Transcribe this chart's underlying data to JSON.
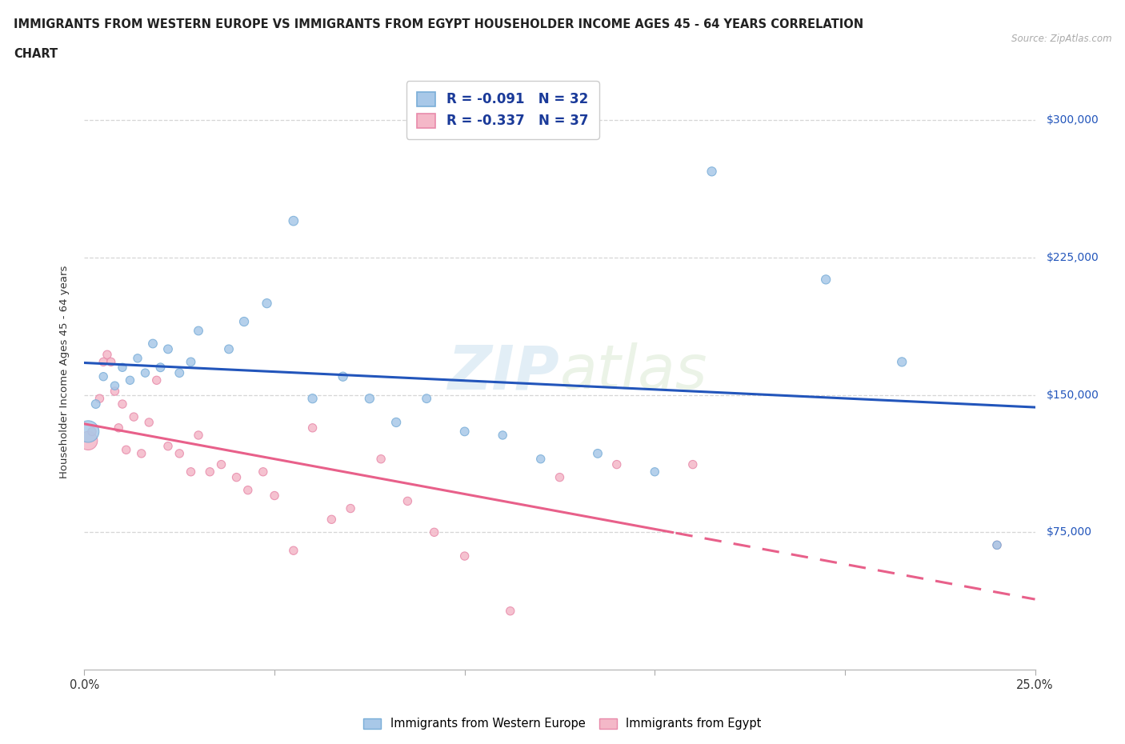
{
  "title_line1": "IMMIGRANTS FROM WESTERN EUROPE VS IMMIGRANTS FROM EGYPT HOUSEHOLDER INCOME AGES 45 - 64 YEARS CORRELATION",
  "title_line2": "CHART",
  "source": "Source: ZipAtlas.com",
  "ylabel": "Householder Income Ages 45 - 64 years",
  "xlim": [
    0.0,
    0.25
  ],
  "ylim": [
    0,
    325000
  ],
  "ytick_labels": [
    "$75,000",
    "$150,000",
    "$225,000",
    "$300,000"
  ],
  "ytick_values": [
    75000,
    150000,
    225000,
    300000
  ],
  "watermark": "ZIPatlas",
  "legend1_label": "R = -0.091   N = 32",
  "legend2_label": "R = -0.337   N = 37",
  "series1_color": "#a8c8e8",
  "series2_color": "#f4b8c8",
  "series1_edge": "#7aaed8",
  "series2_edge": "#e88aaa",
  "trendline1_color": "#2255bb",
  "trendline2_color": "#e8608a",
  "series1_name": "Immigrants from Western Europe",
  "series2_name": "Immigrants from Egypt",
  "western_europe_x": [
    0.001,
    0.003,
    0.005,
    0.008,
    0.01,
    0.012,
    0.014,
    0.016,
    0.018,
    0.02,
    0.022,
    0.025,
    0.028,
    0.03,
    0.038,
    0.042,
    0.048,
    0.055,
    0.06,
    0.068,
    0.075,
    0.082,
    0.09,
    0.1,
    0.11,
    0.12,
    0.135,
    0.15,
    0.165,
    0.195,
    0.215,
    0.24
  ],
  "western_europe_y": [
    130000,
    145000,
    160000,
    155000,
    165000,
    158000,
    170000,
    162000,
    178000,
    165000,
    175000,
    162000,
    168000,
    185000,
    175000,
    190000,
    200000,
    245000,
    148000,
    160000,
    148000,
    135000,
    148000,
    130000,
    128000,
    115000,
    118000,
    108000,
    272000,
    213000,
    168000,
    68000
  ],
  "western_europe_sizes": [
    380,
    60,
    55,
    55,
    55,
    55,
    55,
    55,
    60,
    60,
    60,
    60,
    60,
    60,
    60,
    65,
    65,
    70,
    65,
    65,
    65,
    65,
    60,
    60,
    55,
    55,
    60,
    55,
    65,
    65,
    65,
    55
  ],
  "egypt_x": [
    0.001,
    0.002,
    0.004,
    0.005,
    0.006,
    0.007,
    0.008,
    0.009,
    0.01,
    0.011,
    0.013,
    0.015,
    0.017,
    0.019,
    0.022,
    0.025,
    0.028,
    0.03,
    0.033,
    0.036,
    0.04,
    0.043,
    0.047,
    0.05,
    0.055,
    0.06,
    0.065,
    0.07,
    0.078,
    0.085,
    0.092,
    0.1,
    0.112,
    0.125,
    0.14,
    0.16,
    0.24
  ],
  "egypt_y": [
    125000,
    130000,
    148000,
    168000,
    172000,
    168000,
    152000,
    132000,
    145000,
    120000,
    138000,
    118000,
    135000,
    158000,
    122000,
    118000,
    108000,
    128000,
    108000,
    112000,
    105000,
    98000,
    108000,
    95000,
    65000,
    132000,
    82000,
    88000,
    115000,
    92000,
    75000,
    62000,
    32000,
    105000,
    112000,
    112000,
    68000
  ],
  "egypt_sizes": [
    280,
    55,
    55,
    55,
    55,
    55,
    55,
    55,
    55,
    55,
    55,
    55,
    55,
    55,
    55,
    55,
    55,
    55,
    55,
    55,
    55,
    55,
    55,
    55,
    55,
    55,
    55,
    55,
    55,
    55,
    55,
    55,
    55,
    55,
    55,
    55,
    55
  ],
  "background_color": "#ffffff",
  "grid_color": "#cccccc",
  "right_label_color": "#2255bb"
}
